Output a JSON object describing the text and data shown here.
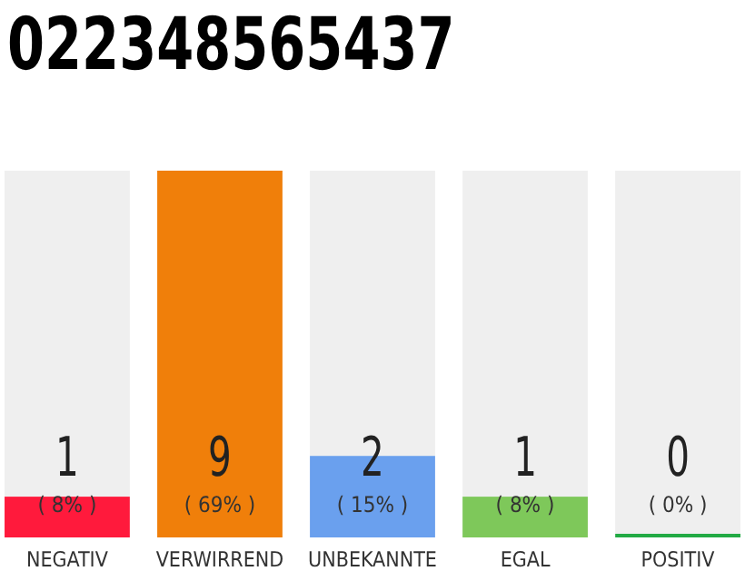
{
  "chart_data": {
    "type": "bar",
    "title": "022348565437",
    "categories": [
      "NEGATIV",
      "VERWIRREND",
      "UNBEKANNTE",
      "EGAL",
      "POSITIV"
    ],
    "values": [
      1,
      9,
      2,
      1,
      0
    ],
    "colors": [
      "#ff1a3c",
      "#f07f0a",
      "#6aa0ee",
      "#7ec85a",
      "#22aa44"
    ],
    "ylim": [
      0,
      9
    ],
    "data_labels": true,
    "annotations": [
      "( 8% )",
      "( 69% )",
      "( 15% )",
      "( 8% )",
      "( 0% )"
    ]
  }
}
